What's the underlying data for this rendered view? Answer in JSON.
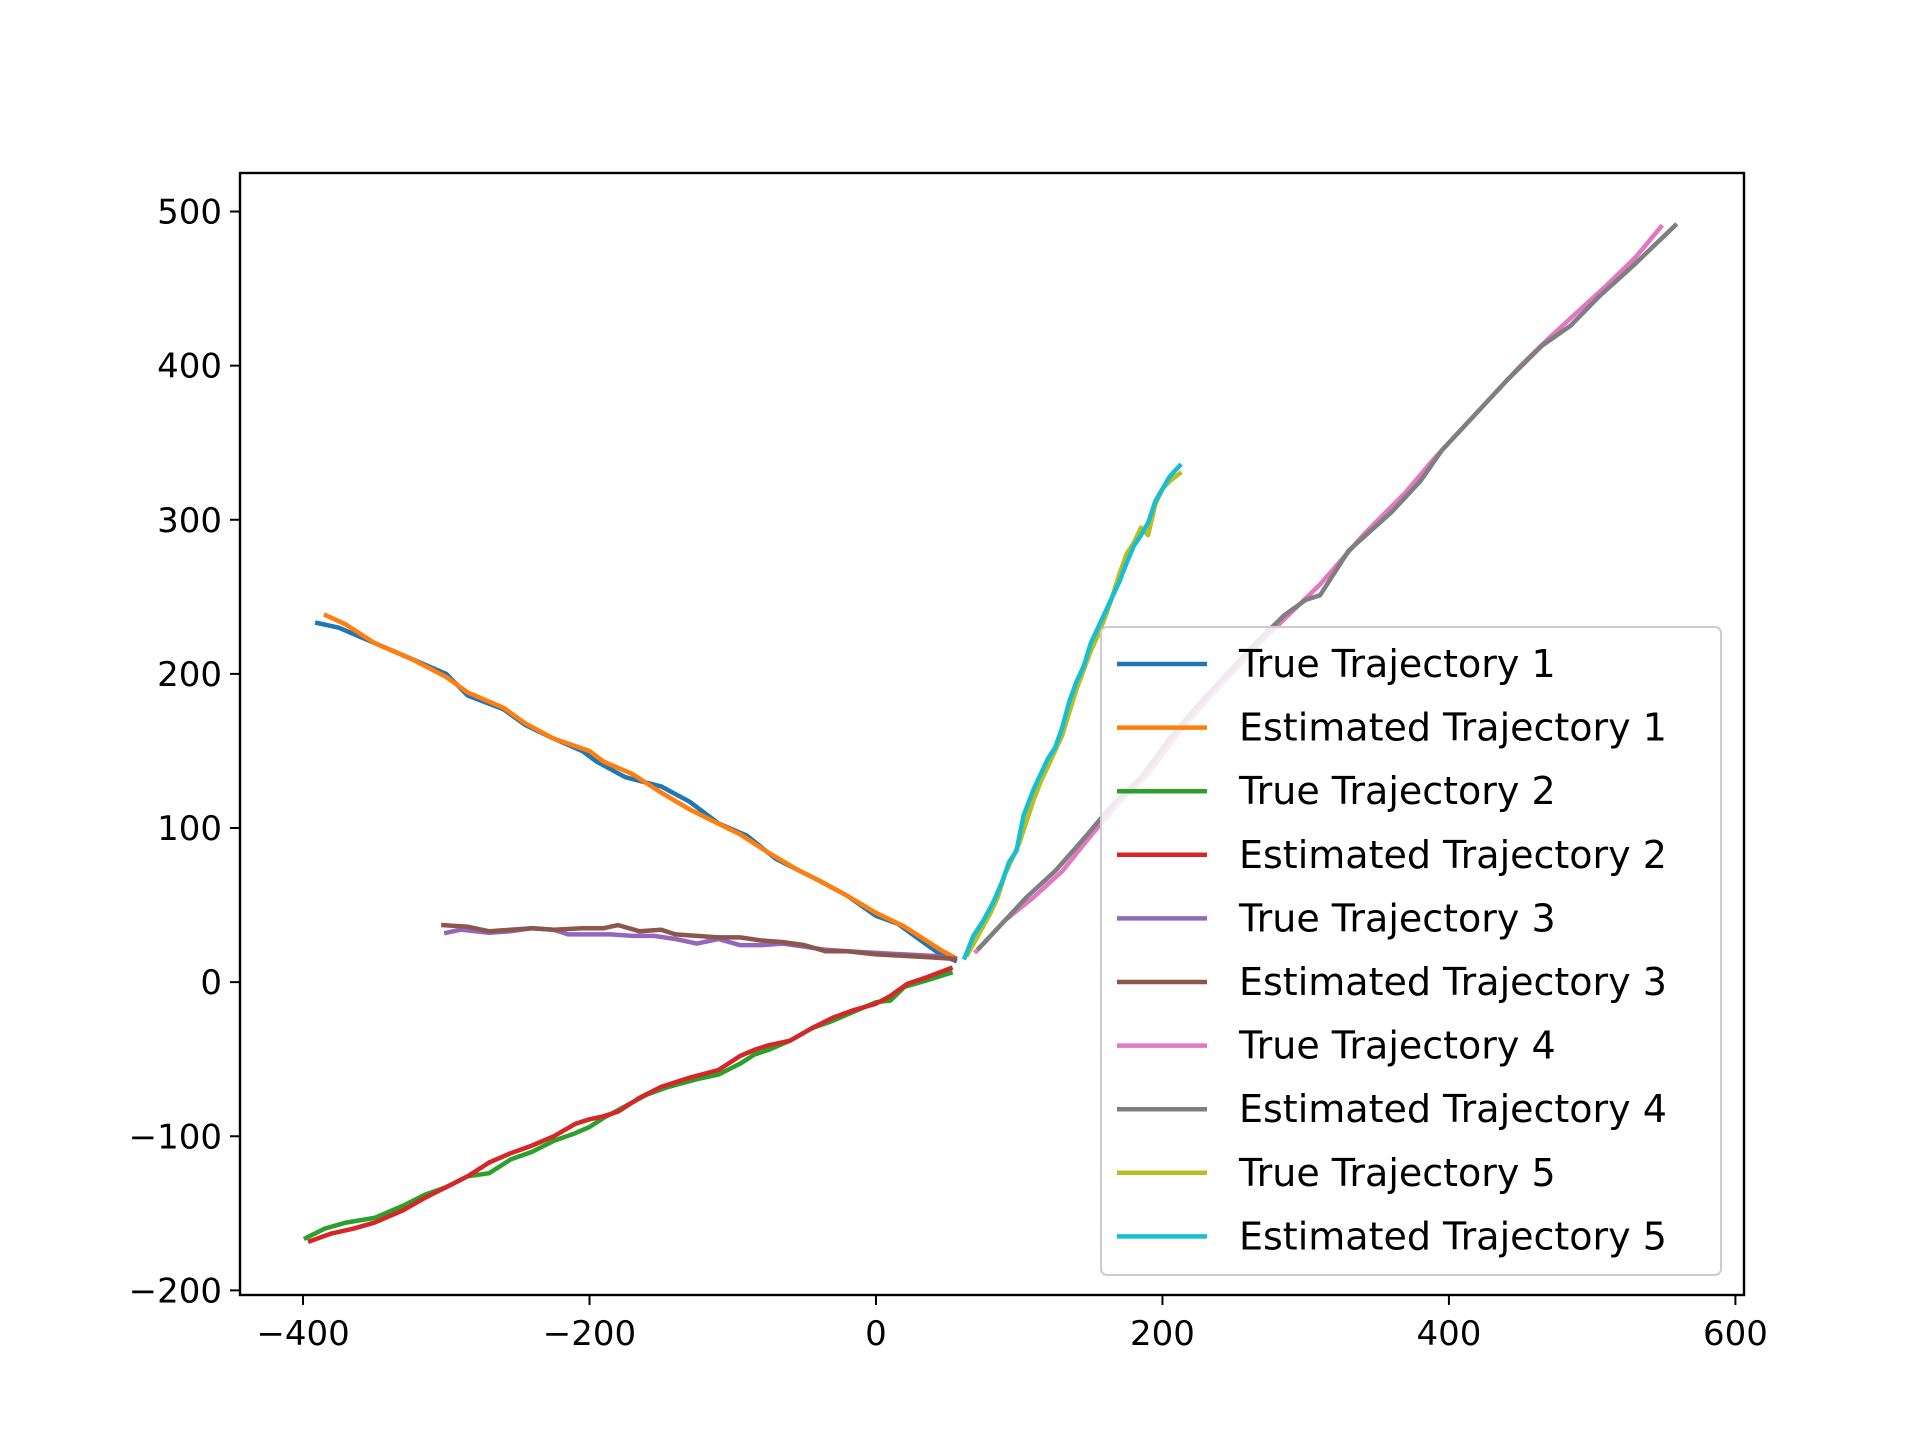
{
  "chart_data": {
    "type": "line",
    "title": "",
    "xlabel": "",
    "ylabel": "",
    "xlim": [
      -444,
      606
    ],
    "ylim": [
      -203,
      525
    ],
    "xticks": [
      -400,
      -200,
      0,
      200,
      400,
      600
    ],
    "yticks": [
      -200,
      -100,
      0,
      100,
      200,
      300,
      400,
      500
    ],
    "xtick_labels": [
      "−400",
      "−200",
      "0",
      "200",
      "400",
      "600"
    ],
    "ytick_labels": [
      "−200",
      "−100",
      "0",
      "100",
      "200",
      "300",
      "400",
      "500"
    ],
    "grid": false,
    "legend_position": "lower right",
    "series": [
      {
        "name": "True Trajectory 1",
        "color": "#1f77b4",
        "x": [
          -390,
          -375,
          -350,
          -325,
          -300,
          -285,
          -260,
          -245,
          -225,
          -205,
          -195,
          -175,
          -150,
          -130,
          -110,
          -90,
          -70,
          -55,
          -40,
          -20,
          0,
          15,
          30,
          45,
          55
        ],
        "y": [
          233,
          230,
          220,
          210,
          200,
          186,
          177,
          167,
          158,
          150,
          143,
          133,
          127,
          117,
          103,
          95,
          80,
          73,
          66,
          56,
          43,
          38,
          28,
          18,
          14
        ]
      },
      {
        "name": "Estimated Trajectory 1",
        "color": "#ff7f0e",
        "x": [
          -384,
          -370,
          -350,
          -325,
          -300,
          -285,
          -260,
          -245,
          -225,
          -200,
          -190,
          -170,
          -150,
          -130,
          -115,
          -95,
          -75,
          -55,
          -40,
          -20,
          0,
          20,
          35,
          45,
          55
        ],
        "y": [
          238,
          232,
          220,
          210,
          198,
          188,
          178,
          168,
          158,
          150,
          143,
          135,
          123,
          112,
          105,
          96,
          84,
          73,
          66,
          56,
          45,
          36,
          27,
          21,
          16
        ]
      },
      {
        "name": "True Trajectory 2",
        "color": "#2ca02c",
        "x": [
          -398,
          -385,
          -370,
          -350,
          -330,
          -315,
          -300,
          -285,
          -270,
          -255,
          -240,
          -225,
          -210,
          -200,
          -190,
          -180,
          -170,
          -160,
          -145,
          -125,
          -110,
          -95,
          -85,
          -75,
          -60,
          -45,
          -30,
          -15,
          0,
          10,
          20,
          35,
          52
        ],
        "y": [
          -166,
          -160,
          -156,
          -153,
          -145,
          -138,
          -133,
          -126,
          -124,
          -115,
          -110,
          -103,
          -98,
          -94,
          -88,
          -83,
          -78,
          -73,
          -68,
          -63,
          -60,
          -53,
          -47,
          -44,
          -38,
          -30,
          -25,
          -19,
          -13,
          -12,
          -3,
          1,
          6
        ]
      },
      {
        "name": "Estimated Trajectory 2",
        "color": "#d62728",
        "x": [
          -395,
          -380,
          -365,
          -350,
          -330,
          -315,
          -300,
          -285,
          -270,
          -255,
          -240,
          -225,
          -210,
          -200,
          -190,
          -180,
          -165,
          -150,
          -130,
          -110,
          -95,
          -85,
          -75,
          -60,
          -45,
          -30,
          -15,
          0,
          10,
          22,
          35,
          52
        ],
        "y": [
          -168,
          -163,
          -160,
          -156,
          -148,
          -140,
          -133,
          -126,
          -117,
          -111,
          -106,
          -100,
          -92,
          -89,
          -87,
          -84,
          -75,
          -68,
          -62,
          -57,
          -48,
          -44,
          -41,
          -38,
          -30,
          -23,
          -18,
          -14,
          -9,
          -1,
          3,
          9
        ]
      },
      {
        "name": "True Trajectory 3",
        "color": "#9467bd",
        "x": [
          -300,
          -290,
          -270,
          -255,
          -240,
          -225,
          -215,
          -200,
          -185,
          -170,
          -155,
          -140,
          -125,
          -110,
          -95,
          -80,
          -65,
          -50,
          -35,
          -20,
          0,
          20,
          40,
          55
        ],
        "y": [
          32,
          34,
          32,
          33,
          35,
          34,
          31,
          31,
          31,
          30,
          30,
          28,
          25,
          28,
          24,
          24,
          25,
          23,
          21,
          20,
          19,
          18,
          17,
          15
        ]
      },
      {
        "name": "Estimated Trajectory 3",
        "color": "#8c564b",
        "x": [
          -302,
          -285,
          -270,
          -255,
          -240,
          -225,
          -205,
          -190,
          -180,
          -165,
          -150,
          -140,
          -125,
          -110,
          -95,
          -80,
          -65,
          -50,
          -35,
          -20,
          0,
          20,
          40,
          55
        ],
        "y": [
          37,
          36,
          33,
          34,
          35,
          34,
          35,
          35,
          37,
          33,
          34,
          31,
          30,
          29,
          29,
          27,
          26,
          24,
          20,
          20,
          18,
          17,
          16,
          15
        ]
      },
      {
        "name": "True Trajectory 4",
        "color": "#e377c2",
        "x": [
          70,
          90,
          110,
          130,
          150,
          170,
          190,
          210,
          230,
          250,
          270,
          290,
          310,
          340,
          370,
          390,
          410,
          430,
          450,
          470,
          490,
          510,
          530,
          548
        ],
        "y": [
          20,
          40,
          55,
          72,
          95,
          117,
          135,
          160,
          182,
          202,
          222,
          240,
          258,
          290,
          318,
          340,
          360,
          380,
          400,
          418,
          435,
          452,
          470,
          490
        ]
      },
      {
        "name": "Estimated Trajectory 4",
        "color": "#7f7f7f",
        "x": [
          72,
          90,
          105,
          125,
          145,
          165,
          185,
          205,
          225,
          245,
          265,
          285,
          300,
          310,
          330,
          360,
          380,
          395,
          415,
          440,
          465,
          485,
          505,
          530,
          558
        ],
        "y": [
          22,
          40,
          55,
          72,
          93,
          115,
          133,
          158,
          180,
          200,
          220,
          238,
          248,
          251,
          280,
          305,
          325,
          345,
          365,
          390,
          413,
          426,
          445,
          466,
          491
        ]
      },
      {
        "name": "True Trajectory 5",
        "color": "#bcbd22",
        "x": [
          64,
          70,
          80,
          85,
          90,
          95,
          100,
          110,
          115,
          120,
          130,
          135,
          140,
          150,
          155,
          160,
          165,
          170,
          175,
          180,
          185,
          190,
          195,
          200,
          205,
          212
        ],
        "y": [
          18,
          28,
          45,
          55,
          70,
          80,
          90,
          118,
          130,
          140,
          160,
          175,
          190,
          215,
          225,
          237,
          250,
          265,
          278,
          285,
          295,
          290,
          310,
          320,
          325,
          330
        ]
      },
      {
        "name": "Estimated Trajectory 5",
        "color": "#17becf",
        "x": [
          62,
          68,
          75,
          82,
          88,
          93,
          98,
          103,
          110,
          115,
          120,
          125,
          130,
          135,
          140,
          145,
          150,
          155,
          160,
          165,
          170,
          175,
          180,
          185,
          190,
          195,
          200,
          205,
          212
        ],
        "y": [
          16,
          30,
          40,
          52,
          65,
          78,
          85,
          108,
          125,
          135,
          145,
          152,
          165,
          182,
          195,
          205,
          220,
          230,
          240,
          250,
          260,
          272,
          283,
          290,
          298,
          312,
          320,
          328,
          335
        ]
      }
    ]
  }
}
